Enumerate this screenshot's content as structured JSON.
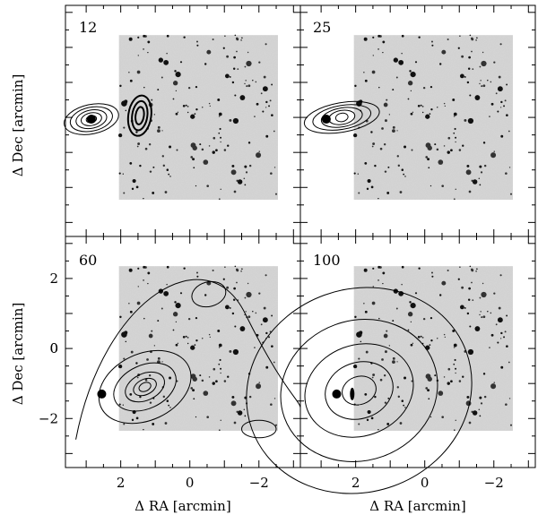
{
  "figure": {
    "ylabel": "Δ Dec  [arcmin]",
    "xlabel": "Δ RA  [arcmin]"
  },
  "chart_data": {
    "type": "contour",
    "xlabel": "Δ RA  [arcmin]",
    "ylabel": "Δ Dec  [arcmin]",
    "xlim": [
      3.6,
      -3.2
    ],
    "ylim": [
      -3.4,
      3.2
    ],
    "x_inverted": true,
    "xticks_labeled": [
      2,
      0,
      -2
    ],
    "yticks_labeled": [
      2,
      0,
      -2
    ],
    "panels": [
      {
        "label": "12",
        "position": "top-left",
        "tick_labels_shown": false
      },
      {
        "label": "25",
        "position": "top-right",
        "tick_labels_shown": false
      },
      {
        "label": "60",
        "position": "bottom-left",
        "tick_labels_shown": true
      },
      {
        "label": "100",
        "position": "bottom-right",
        "tick_labels_shown": true
      }
    ]
  }
}
